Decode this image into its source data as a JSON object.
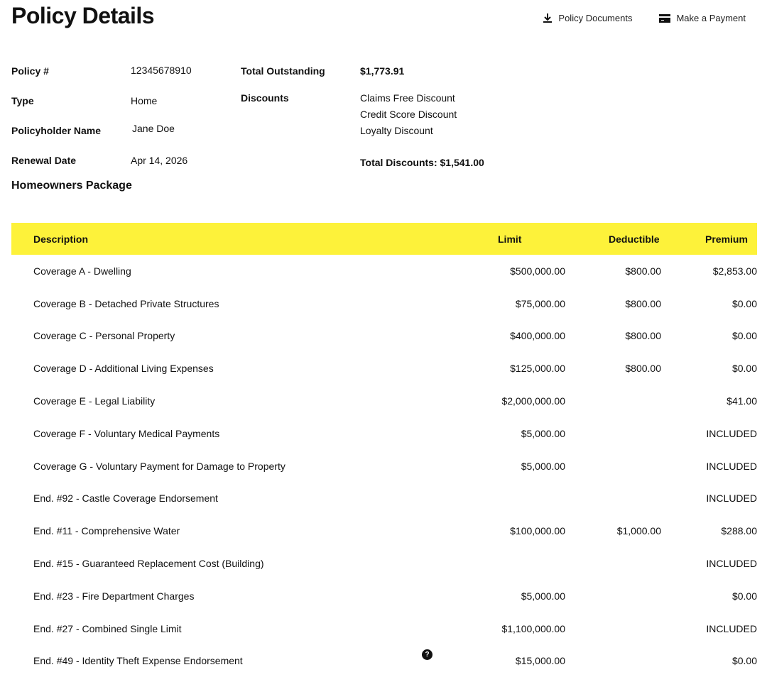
{
  "title": "Policy Details",
  "actions": {
    "documents": "Policy Documents",
    "payment": "Make a Payment"
  },
  "policy": {
    "number_label": "Policy #",
    "number": "12345678910",
    "type_label": "Type",
    "type": "Home",
    "holder_label": "Policyholder Name",
    "holder": "Jane Doe",
    "renewal_label": "Renewal Date",
    "renewal": "Apr 14, 2026",
    "outstanding_label": "Total Outstanding",
    "outstanding": "$1,773.91",
    "discounts_label": "Discounts",
    "discounts": [
      "Claims Free Discount",
      "Credit Score Discount",
      "Loyalty Discount"
    ],
    "total_discounts": "Total Discounts: $1,541.00"
  },
  "package_title": "Homeowners Package",
  "table": {
    "headers": [
      "Description",
      "Limit",
      "Deductible",
      "Premium"
    ],
    "rows": [
      [
        "Coverage A - Dwelling",
        "$500,000.00",
        "$800.00",
        "$2,853.00"
      ],
      [
        "Coverage B - Detached Private Structures",
        "$75,000.00",
        "$800.00",
        "$0.00"
      ],
      [
        "Coverage C - Personal Property",
        "$400,000.00",
        "$800.00",
        "$0.00"
      ],
      [
        "Coverage D - Additional Living Expenses",
        "$125,000.00",
        "$800.00",
        "$0.00"
      ],
      [
        "Coverage E - Legal Liability",
        "$2,000,000.00",
        "",
        "$41.00"
      ],
      [
        "Coverage F - Voluntary Medical Payments",
        "$5,000.00",
        "",
        "INCLUDED"
      ],
      [
        "Coverage G - Voluntary Payment for Damage to Property",
        "$5,000.00",
        "",
        "INCLUDED"
      ],
      [
        "End. #92 - Castle Coverage Endorsement",
        "",
        "",
        "INCLUDED"
      ],
      [
        "End. #11 - Comprehensive Water",
        "$100,000.00",
        "$1,000.00",
        "$288.00"
      ],
      [
        "End. #15 - Guaranteed Replacement Cost (Building)",
        "",
        "",
        "INCLUDED"
      ],
      [
        "End. #23 - Fire Department Charges",
        "$5,000.00",
        "",
        "$0.00"
      ],
      [
        "End. #27 - Combined Single Limit",
        "$1,100,000.00",
        "",
        "INCLUDED"
      ],
      [
        "End. #49 - Identity Theft Expense Endorsement",
        "$15,000.00",
        "",
        "$0.00"
      ]
    ],
    "help_glyph": "?"
  }
}
